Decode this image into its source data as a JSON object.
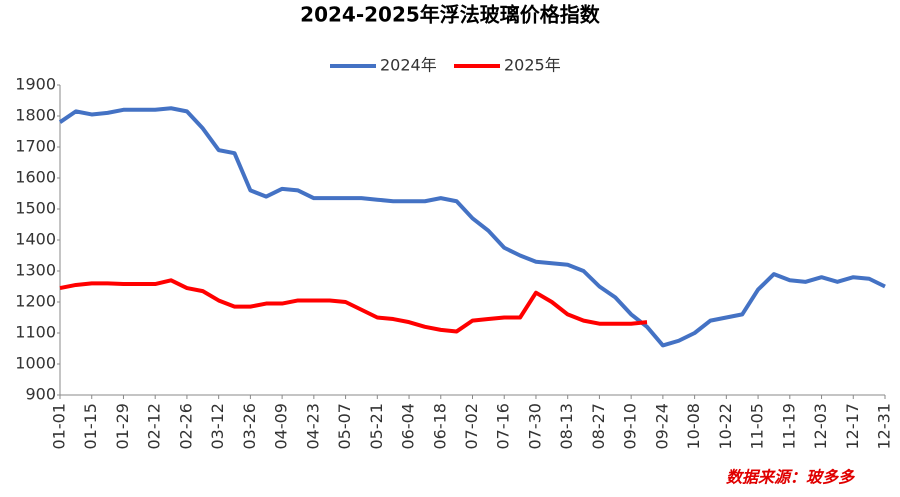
{
  "chart_data": {
    "type": "line",
    "title": "2024-2025年浮法玻璃价格指数",
    "source": "数据来源：玻多多",
    "categories": [
      "01-01",
      null,
      "01-15",
      null,
      "01-29",
      null,
      "02-12",
      null,
      "02-26",
      null,
      "03-12",
      null,
      "03-26",
      null,
      "04-09",
      null,
      "04-23",
      null,
      "05-07",
      null,
      "05-21",
      null,
      "06-04",
      null,
      "06-18",
      null,
      "07-02",
      null,
      "07-16",
      null,
      "07-30",
      null,
      "08-13",
      null,
      "08-27",
      null,
      "09-10",
      null,
      "09-24",
      null,
      "10-08",
      null,
      "10-22",
      null,
      "11-05",
      null,
      "11-19",
      null,
      "12-03",
      null,
      "12-17",
      null,
      "12-31"
    ],
    "series": [
      {
        "name": "2024年",
        "color": "#4472c4",
        "values": [
          1780,
          1815,
          1805,
          1810,
          1820,
          1820,
          1820,
          1825,
          1815,
          1760,
          1690,
          1680,
          1560,
          1540,
          1565,
          1560,
          1535,
          1535,
          1535,
          1535,
          1530,
          1525,
          1525,
          1525,
          1535,
          1525,
          1470,
          1430,
          1375,
          1350,
          1330,
          1325,
          1320,
          1300,
          1250,
          1215,
          1160,
          1120,
          1060,
          1075,
          1100,
          1140,
          1150,
          1160,
          1240,
          1290,
          1270,
          1265,
          1280,
          1265,
          1280,
          1275,
          1250
        ]
      },
      {
        "name": "2025年",
        "color": "#ff0000",
        "values": [
          1245,
          1255,
          1260,
          1260,
          1258,
          1258,
          1258,
          1270,
          1245,
          1235,
          1205,
          1185,
          1185,
          1195,
          1195,
          1205,
          1205,
          1205,
          1200,
          1175,
          1150,
          1145,
          1135,
          1120,
          1110,
          1105,
          1140,
          1145,
          1150,
          1150,
          1230,
          1200,
          1160,
          1140,
          1130,
          1130,
          1130,
          1135,
          null,
          null,
          null,
          null,
          null,
          null,
          null,
          null,
          null,
          null,
          null,
          null,
          null,
          null,
          null
        ]
      }
    ],
    "ylim": [
      900,
      1900
    ],
    "yticks": [
      900,
      1000,
      1100,
      1200,
      1300,
      1400,
      1500,
      1600,
      1700,
      1800,
      1900
    ],
    "legend": "top"
  }
}
